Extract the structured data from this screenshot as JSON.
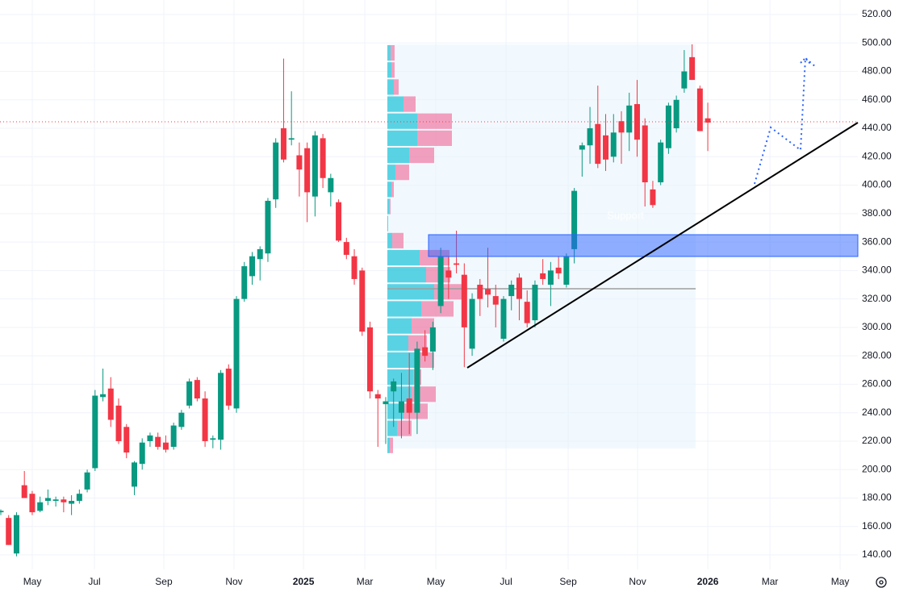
{
  "chart_data": {
    "type": "candlestick",
    "annotation": "Support",
    "x": [
      0,
      1,
      2,
      3,
      4,
      5,
      6,
      7,
      8,
      9,
      10,
      11,
      12,
      13,
      14,
      15,
      16,
      17,
      18,
      19,
      20,
      21,
      22,
      23,
      24,
      25,
      26,
      27,
      28,
      29,
      30,
      31,
      32,
      33,
      34,
      35,
      36,
      37,
      38,
      39,
      40,
      41,
      42,
      43,
      44,
      45,
      46,
      47,
      48,
      49,
      50,
      51,
      52,
      53,
      54,
      55,
      56,
      57,
      58,
      59,
      60,
      61,
      62,
      63,
      64,
      65,
      66,
      67,
      68,
      69,
      70,
      71,
      72,
      73,
      74,
      75,
      76,
      77,
      78,
      79,
      80,
      81,
      82,
      83,
      84,
      85,
      86,
      87,
      88,
      89,
      90
    ],
    "open": [
      170,
      166,
      141,
      189,
      183,
      171,
      178,
      178,
      179,
      176,
      178,
      186,
      201,
      251,
      257,
      245,
      230,
      188,
      204,
      220,
      223,
      219,
      216,
      230,
      245,
      263,
      250,
      221,
      221,
      271,
      243,
      320,
      336,
      348,
      352,
      390,
      440,
      432,
      421,
      426,
      392,
      433,
      395,
      388,
      360,
      350,
      340,
      300,
      253,
      246,
      255,
      240,
      250,
      240,
      286,
      283,
      315,
      340,
      345,
      337,
      285,
      330,
      327,
      322,
      292,
      322,
      335,
      318,
      305,
      338,
      330,
      342,
      330,
      355,
      425,
      428,
      443,
      435,
      420,
      445,
      437,
      457,
      442,
      397,
      402,
      426,
      440,
      468,
      490,
      468,
      447
    ],
    "high": [
      172,
      168,
      170,
      199,
      185,
      181,
      186,
      181,
      181,
      182,
      186,
      200,
      256,
      271,
      265,
      250,
      232,
      206,
      222,
      226,
      226,
      224,
      233,
      242,
      264,
      265,
      255,
      224,
      270,
      274,
      322,
      346,
      353,
      357,
      391,
      433,
      489,
      466,
      430,
      430,
      438,
      436,
      408,
      390,
      363,
      355,
      342,
      304,
      256,
      251,
      264,
      268,
      282,
      290,
      298,
      304,
      356,
      350,
      368,
      345,
      324,
      334,
      356,
      330,
      322,
      333,
      338,
      326,
      333,
      348,
      346,
      350,
      352,
      398,
      430,
      455,
      470,
      450,
      450,
      452,
      465,
      474,
      447,
      403,
      432,
      458,
      463,
      495,
      499,
      470,
      458
    ],
    "low": [
      168,
      147,
      139,
      182,
      168,
      170,
      175,
      174,
      170,
      168,
      176,
      184,
      199,
      248,
      230,
      218,
      208,
      182,
      200,
      216,
      214,
      212,
      214,
      228,
      243,
      248,
      216,
      215,
      214,
      242,
      240,
      318,
      330,
      333,
      346,
      384,
      416,
      428,
      392,
      374,
      378,
      398,
      385,
      360,
      348,
      330,
      294,
      250,
      216,
      218,
      230,
      222,
      225,
      225,
      276,
      270,
      310,
      320,
      338,
      272,
      280,
      308,
      314,
      300,
      290,
      312,
      305,
      300,
      300,
      330,
      315,
      334,
      328,
      345,
      406,
      415,
      412,
      410,
      416,
      415,
      424,
      420,
      385,
      384,
      400,
      422,
      437,
      465,
      474,
      438,
      424
    ],
    "close": [
      171,
      147,
      168,
      180,
      170,
      177,
      180,
      179,
      177,
      178,
      183,
      198,
      252,
      253,
      235,
      220,
      212,
      205,
      219,
      224,
      216,
      214,
      231,
      240,
      262,
      250,
      220,
      222,
      268,
      245,
      320,
      343,
      350,
      355,
      389,
      430,
      418,
      433,
      411,
      395,
      435,
      405,
      405,
      361,
      351,
      334,
      297,
      255,
      250,
      248,
      262,
      248,
      240,
      285,
      280,
      300,
      350,
      335,
      344,
      300,
      320,
      320,
      323,
      316,
      320,
      330,
      320,
      303,
      330,
      334,
      340,
      338,
      350,
      396,
      428,
      440,
      415,
      418,
      437,
      437,
      456,
      432,
      402,
      386,
      430,
      456,
      460,
      480,
      474,
      438,
      444
    ],
    "up_color": "#089981",
    "down_color": "#f23645",
    "volume_profile": {
      "levels": [
        487,
        475,
        463,
        451,
        439,
        427,
        415,
        403,
        391,
        379,
        367,
        355,
        343,
        331,
        319,
        307,
        295,
        283,
        271,
        259,
        247,
        235,
        223,
        211
      ],
      "up": [
        4,
        5,
        8,
        20,
        37,
        37,
        27,
        10,
        5,
        2,
        1,
        6,
        40,
        48,
        58,
        42,
        30,
        26,
        38,
        32,
        30,
        20,
        12,
        3
      ],
      "down": [
        5,
        4,
        6,
        15,
        43,
        43,
        31,
        17,
        3,
        2,
        0,
        14,
        37,
        30,
        40,
        40,
        28,
        23,
        20,
        10,
        30,
        30,
        18,
        4
      ],
      "up_color": "#26c6da",
      "down_color": "#f06292"
    },
    "xlim": [
      -0.103,
      109.1
    ],
    "xticks": [
      {
        "value": 4.01,
        "label": "May"
      },
      {
        "value": 11.92,
        "label": "Jul"
      },
      {
        "value": 20.75,
        "label": "Sep"
      },
      {
        "value": 29.69,
        "label": "Nov"
      },
      {
        "value": 38.53,
        "label": "2025"
      },
      {
        "value": 46.34,
        "label": "Mar"
      },
      {
        "value": 55.38,
        "label": "May"
      },
      {
        "value": 64.32,
        "label": "Jul"
      },
      {
        "value": 72.23,
        "label": "Sep"
      },
      {
        "value": 81.06,
        "label": "Nov"
      },
      {
        "value": 90.0,
        "label": "2026"
      },
      {
        "value": 97.91,
        "label": "Mar"
      },
      {
        "value": 106.85,
        "label": "May"
      }
    ],
    "ylim": [
      129.8,
      530.2
    ],
    "yticks": [
      {
        "value": 140,
        "label": "140.00"
      },
      {
        "value": 160,
        "label": "160.00"
      },
      {
        "value": 180,
        "label": "180.00"
      },
      {
        "value": 200,
        "label": "200.00"
      },
      {
        "value": 220,
        "label": "220.00"
      },
      {
        "value": 240,
        "label": "240.00"
      },
      {
        "value": 260,
        "label": "260.00"
      },
      {
        "value": 280,
        "label": "280.00"
      },
      {
        "value": 300,
        "label": "300.00"
      },
      {
        "value": 320,
        "label": "320.00"
      },
      {
        "value": 340,
        "label": "340.00"
      },
      {
        "value": 360,
        "label": "360.00"
      },
      {
        "value": 380,
        "label": "380.00"
      },
      {
        "value": 400,
        "label": "400.00"
      },
      {
        "value": 420,
        "label": "420.00"
      },
      {
        "value": 440,
        "label": "440.00"
      },
      {
        "value": 460,
        "label": "460.00"
      },
      {
        "value": 480,
        "label": "480.00"
      },
      {
        "value": 500,
        "label": "500.00"
      },
      {
        "value": 520,
        "label": "520.00"
      }
    ],
    "grid": true
  }
}
